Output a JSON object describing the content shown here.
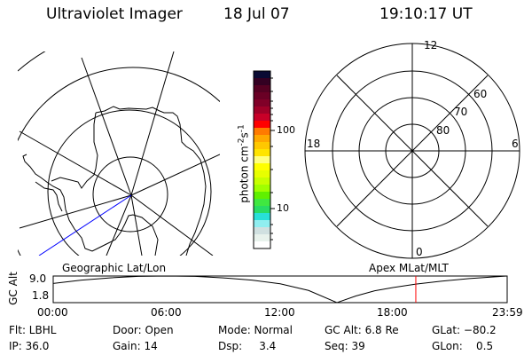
{
  "header": {
    "instrument": "Ultraviolet Imager",
    "date": "18 Jul 07",
    "time": "19:10:17 UT"
  },
  "colorbar": {
    "label_main": "photon cm",
    "label_exp1": "-2",
    "label_mid": "s",
    "label_exp2": "-1",
    "ticks": [
      "100",
      "10"
    ],
    "colors": [
      "#0a0a33",
      "#330022",
      "#550022",
      "#6a0025",
      "#800028",
      "#a00028",
      "#c80028",
      "#ff0000",
      "#ff7a00",
      "#ffa800",
      "#ffc800",
      "#ffe400",
      "#ffff80",
      "#ffff00",
      "#e8ff00",
      "#c8ff00",
      "#a0ff00",
      "#60f000",
      "#40e840",
      "#28dc64",
      "#28e0d8",
      "#90eef0",
      "#d0e0e0",
      "#e8f2ec",
      "#ffffff"
    ]
  },
  "polar_plot": {
    "mlt_labels": [
      "12",
      "6",
      "0",
      "18"
    ],
    "lat_labels": [
      "60",
      "70",
      "80"
    ]
  },
  "map_labels": {
    "left": "Geographic Lat/Lon",
    "right": "Apex MLat/MLT"
  },
  "chart_data": {
    "type": "line",
    "ylabel": "GC Alt",
    "yticks": [
      "9.0",
      "1.8"
    ],
    "ylim": [
      1.8,
      9.0
    ],
    "xticks": [
      "00:00",
      "06:00",
      "12:00",
      "18:00",
      "23:59"
    ],
    "xlim_hours": [
      0,
      24
    ],
    "series": [
      {
        "x_hours": [
          0,
          1.5,
          3,
          4.5,
          6,
          7.5,
          9,
          10.5,
          12,
          13.5,
          15,
          16,
          17,
          18,
          19.17,
          20.5,
          22,
          23.98
        ],
        "values": [
          7.0,
          7.9,
          8.5,
          8.9,
          9.0,
          8.9,
          8.5,
          7.9,
          6.9,
          5.1,
          1.8,
          3.6,
          5.0,
          5.9,
          6.8,
          7.6,
          8.3,
          9.0
        ],
        "color": "#000000"
      }
    ],
    "current_time_hours": 19.17,
    "current_marker_color": "#ff0000"
  },
  "status": {
    "row1": [
      "Flt: LBHL",
      "Door: Open",
      "Mode: Normal",
      "GC Alt: 6.8 Re",
      "GLat: −80.2"
    ],
    "row2": [
      "IP: 36.0",
      "Gain: 14",
      "Dsp:     3.4",
      "Seq: 39",
      "GLon:    0.5"
    ]
  }
}
